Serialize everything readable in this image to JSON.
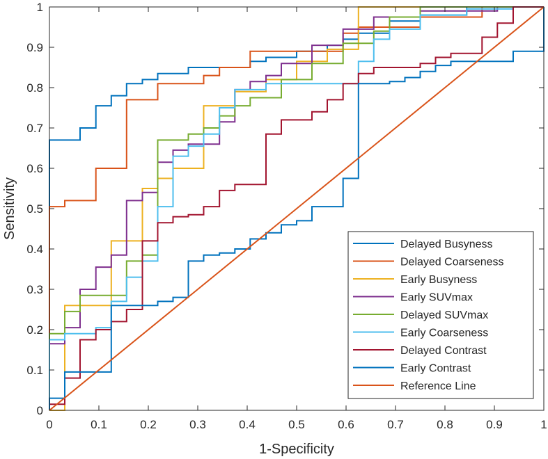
{
  "chart_data": {
    "type": "line",
    "xlabel": "1-Specificity",
    "ylabel": "Sensitivity",
    "xlim": [
      0,
      1
    ],
    "ylim": [
      0,
      1
    ],
    "xticks": [
      "0",
      "0.1",
      "0.2",
      "0.3",
      "0.4",
      "0.5",
      "0.6",
      "0.7",
      "0.8",
      "0.9",
      "1"
    ],
    "yticks": [
      "0",
      "0.1",
      "0.2",
      "0.3",
      "0.4",
      "0.5",
      "0.6",
      "0.7",
      "0.8",
      "0.9",
      "1"
    ],
    "grid": false,
    "legend_position": "bottom-right",
    "series": [
      {
        "name": "Delayed Busyness",
        "color": "#0072BD",
        "step": true,
        "x": [
          0,
          0,
          0.062,
          0.062,
          0.094,
          0.094,
          0.125,
          0.125,
          0.156,
          0.156,
          0.188,
          0.188,
          0.219,
          0.219,
          0.281,
          0.281,
          0.406,
          0.406,
          0.438,
          0.438,
          0.5,
          0.5,
          0.562,
          0.562,
          0.594,
          0.594,
          0.625,
          0.625,
          0.688,
          0.688,
          0.75,
          0.75,
          0.844,
          0.844,
          1
        ],
        "y": [
          0,
          0.67,
          0.67,
          0.7,
          0.7,
          0.755,
          0.755,
          0.78,
          0.78,
          0.81,
          0.81,
          0.82,
          0.82,
          0.835,
          0.835,
          0.85,
          0.85,
          0.865,
          0.865,
          0.875,
          0.875,
          0.89,
          0.89,
          0.905,
          0.905,
          0.92,
          0.92,
          0.935,
          0.935,
          0.965,
          0.965,
          0.98,
          0.98,
          1,
          1
        ]
      },
      {
        "name": "Delayed Coarseness",
        "color": "#D95319",
        "step": true,
        "x": [
          0,
          0,
          0.031,
          0.031,
          0.094,
          0.094,
          0.156,
          0.156,
          0.219,
          0.219,
          0.312,
          0.312,
          0.344,
          0.344,
          0.406,
          0.406,
          0.594,
          0.594,
          0.625,
          0.625,
          0.75,
          0.75,
          0.875,
          0.875,
          1
        ],
        "y": [
          0,
          0.505,
          0.505,
          0.52,
          0.52,
          0.6,
          0.6,
          0.77,
          0.77,
          0.81,
          0.81,
          0.83,
          0.83,
          0.85,
          0.85,
          0.89,
          0.89,
          0.935,
          0.935,
          0.95,
          0.95,
          0.975,
          0.975,
          1,
          1
        ]
      },
      {
        "name": "Early Busyness",
        "color": "#EDB120",
        "step": true,
        "x": [
          0,
          0.031,
          0.031,
          0.125,
          0.125,
          0.188,
          0.188,
          0.219,
          0.219,
          0.25,
          0.25,
          0.312,
          0.312,
          0.375,
          0.375,
          0.438,
          0.438,
          0.5,
          0.5,
          0.562,
          0.562,
          0.625,
          0.625,
          1
        ],
        "y": [
          0,
          0,
          0.26,
          0.26,
          0.42,
          0.42,
          0.55,
          0.55,
          0.575,
          0.575,
          0.6,
          0.6,
          0.755,
          0.755,
          0.79,
          0.79,
          0.82,
          0.82,
          0.865,
          0.865,
          0.895,
          0.895,
          1,
          1
        ]
      },
      {
        "name": "Early SUVmax",
        "color": "#7E2F8E",
        "step": true,
        "x": [
          0,
          0,
          0.031,
          0.031,
          0.062,
          0.062,
          0.094,
          0.094,
          0.125,
          0.125,
          0.156,
          0.156,
          0.188,
          0.188,
          0.219,
          0.219,
          0.25,
          0.25,
          0.281,
          0.281,
          0.344,
          0.344,
          0.375,
          0.375,
          0.406,
          0.406,
          0.438,
          0.438,
          0.469,
          0.469,
          0.531,
          0.531,
          0.594,
          0.594,
          0.656,
          0.656,
          0.75,
          0.75,
          0.906,
          0.906,
          1
        ],
        "y": [
          0,
          0.165,
          0.165,
          0.205,
          0.205,
          0.3,
          0.3,
          0.355,
          0.355,
          0.385,
          0.385,
          0.52,
          0.52,
          0.54,
          0.54,
          0.615,
          0.615,
          0.645,
          0.645,
          0.66,
          0.66,
          0.715,
          0.715,
          0.795,
          0.795,
          0.815,
          0.815,
          0.83,
          0.83,
          0.86,
          0.86,
          0.905,
          0.905,
          0.945,
          0.945,
          0.975,
          0.975,
          0.99,
          0.99,
          1,
          1
        ]
      },
      {
        "name": "Delayed SUVmax",
        "color": "#77AC30",
        "step": true,
        "x": [
          0,
          0,
          0.031,
          0.031,
          0.062,
          0.062,
          0.156,
          0.156,
          0.188,
          0.188,
          0.219,
          0.219,
          0.281,
          0.281,
          0.312,
          0.312,
          0.344,
          0.344,
          0.375,
          0.375,
          0.406,
          0.406,
          0.469,
          0.469,
          0.531,
          0.531,
          0.594,
          0.594,
          0.656,
          0.656,
          0.688,
          0.688,
          0.75,
          0.75,
          1
        ],
        "y": [
          0,
          0.19,
          0.19,
          0.245,
          0.245,
          0.285,
          0.285,
          0.37,
          0.37,
          0.385,
          0.385,
          0.67,
          0.67,
          0.685,
          0.685,
          0.7,
          0.7,
          0.73,
          0.73,
          0.755,
          0.755,
          0.775,
          0.775,
          0.82,
          0.82,
          0.86,
          0.86,
          0.91,
          0.91,
          0.94,
          0.94,
          0.975,
          0.975,
          1,
          1
        ]
      },
      {
        "name": "Early Coarseness",
        "color": "#4DBEEE",
        "step": true,
        "x": [
          0,
          0,
          0.031,
          0.031,
          0.094,
          0.094,
          0.125,
          0.125,
          0.156,
          0.156,
          0.188,
          0.188,
          0.219,
          0.219,
          0.25,
          0.25,
          0.281,
          0.281,
          0.312,
          0.312,
          0.344,
          0.344,
          0.375,
          0.375,
          0.438,
          0.438,
          0.625,
          0.625,
          0.656,
          0.656,
          0.688,
          0.688,
          0.75,
          0.75,
          0.844,
          0.844,
          0.938,
          0.938,
          1
        ],
        "y": [
          0,
          0.175,
          0.175,
          0.19,
          0.19,
          0.205,
          0.205,
          0.27,
          0.27,
          0.33,
          0.33,
          0.37,
          0.37,
          0.505,
          0.505,
          0.63,
          0.63,
          0.655,
          0.655,
          0.685,
          0.685,
          0.75,
          0.75,
          0.795,
          0.795,
          0.81,
          0.81,
          0.865,
          0.865,
          0.92,
          0.92,
          0.945,
          0.945,
          0.98,
          0.98,
          0.995,
          0.995,
          1,
          1
        ]
      },
      {
        "name": "Delayed Contrast",
        "color": "#A2142F",
        "step": true,
        "x": [
          0,
          0,
          0.031,
          0.031,
          0.062,
          0.062,
          0.094,
          0.094,
          0.125,
          0.125,
          0.156,
          0.156,
          0.188,
          0.188,
          0.219,
          0.219,
          0.25,
          0.25,
          0.281,
          0.281,
          0.312,
          0.312,
          0.344,
          0.344,
          0.375,
          0.375,
          0.438,
          0.438,
          0.469,
          0.469,
          0.531,
          0.531,
          0.562,
          0.562,
          0.594,
          0.594,
          0.625,
          0.625,
          0.656,
          0.656,
          0.75,
          0.75,
          0.781,
          0.781,
          0.812,
          0.812,
          0.875,
          0.875,
          0.906,
          0.906,
          0.938,
          0.938,
          1
        ],
        "y": [
          0,
          0.015,
          0.015,
          0.08,
          0.08,
          0.175,
          0.175,
          0.2,
          0.2,
          0.22,
          0.22,
          0.25,
          0.25,
          0.42,
          0.42,
          0.465,
          0.465,
          0.48,
          0.48,
          0.485,
          0.485,
          0.505,
          0.505,
          0.545,
          0.545,
          0.56,
          0.56,
          0.685,
          0.685,
          0.72,
          0.72,
          0.74,
          0.74,
          0.77,
          0.77,
          0.81,
          0.81,
          0.835,
          0.835,
          0.85,
          0.85,
          0.86,
          0.86,
          0.875,
          0.875,
          0.885,
          0.885,
          0.925,
          0.925,
          0.96,
          0.96,
          1,
          1
        ]
      },
      {
        "name": "Early Contrast",
        "color": "#0072BD",
        "step": true,
        "x": [
          0,
          0,
          0.031,
          0.031,
          0.125,
          0.125,
          0.219,
          0.219,
          0.25,
          0.25,
          0.281,
          0.281,
          0.312,
          0.312,
          0.344,
          0.344,
          0.375,
          0.375,
          0.406,
          0.406,
          0.438,
          0.438,
          0.469,
          0.469,
          0.5,
          0.5,
          0.531,
          0.531,
          0.594,
          0.594,
          0.625,
          0.625,
          0.688,
          0.688,
          0.719,
          0.719,
          0.75,
          0.75,
          0.781,
          0.781,
          0.812,
          0.812,
          0.938,
          0.938,
          1,
          1
        ],
        "y": [
          0,
          0.03,
          0.03,
          0.095,
          0.095,
          0.26,
          0.26,
          0.27,
          0.27,
          0.28,
          0.28,
          0.37,
          0.37,
          0.385,
          0.385,
          0.39,
          0.39,
          0.4,
          0.4,
          0.425,
          0.425,
          0.44,
          0.44,
          0.46,
          0.46,
          0.47,
          0.47,
          0.505,
          0.505,
          0.575,
          0.575,
          0.81,
          0.81,
          0.815,
          0.815,
          0.825,
          0.825,
          0.84,
          0.84,
          0.855,
          0.855,
          0.865,
          0.865,
          0.89,
          0.89,
          1
        ]
      },
      {
        "name": "Reference Line",
        "color": "#D95319",
        "step": false,
        "x": [
          0,
          1
        ],
        "y": [
          0,
          1
        ]
      }
    ]
  }
}
